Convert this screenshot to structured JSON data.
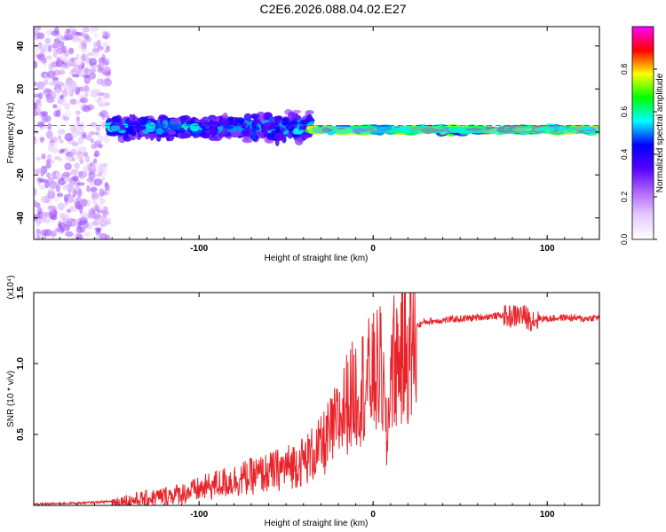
{
  "figure_title": "C2E6.2026.088.04.02.E27",
  "colors": {
    "snr_line": "#e8232a",
    "axis": "#000000",
    "dashed_level": "#555555"
  },
  "chart_data": [
    {
      "type": "heatmap",
      "xlabel": "Height of straight line (km)",
      "ylabel": "Frequency (Hz)",
      "xlim": [
        -195,
        130
      ],
      "ylim": [
        -50,
        49
      ],
      "x_ticks": [
        -100,
        0,
        100
      ],
      "x_tick_labels": [
        "-100",
        "0",
        "100"
      ],
      "y_ticks": [
        -40,
        -20,
        0,
        20,
        40
      ],
      "y_tick_labels": [
        "-40",
        "-20",
        "0",
        "20",
        "40"
      ],
      "dashed_level_hz": 3,
      "colorbar": {
        "label": "Normalized spectral amplitude",
        "range": [
          0,
          1
        ],
        "ticks": [
          0.0,
          0.2,
          0.4,
          0.6,
          0.8
        ],
        "tick_labels": [
          "0.0",
          "0.2",
          "0.4",
          "0.6",
          "0.8"
        ],
        "colormap": [
          "#ffffff",
          "#e6ccff",
          "#b266ff",
          "#5500ff",
          "#0000ff",
          "#00ffff",
          "#00ff00",
          "#ffff00",
          "#ff0000",
          "#ff00ff"
        ]
      },
      "regions": [
        {
          "name": "noise",
          "x_range": [
            -195,
            -152
          ],
          "freq_range": [
            -50,
            49
          ],
          "amplitude": 0.15
        },
        {
          "name": "broadband",
          "x_range": [
            -152,
            -35
          ],
          "freq_center": 2,
          "freq_halfwidth": 8,
          "amplitude": 0.4
        },
        {
          "name": "narrowband",
          "x_range": [
            -35,
            130
          ],
          "freq_center": 1,
          "freq_halfwidth": 2,
          "amplitude": 0.7
        },
        {
          "name": "peak",
          "x_range": [
            75,
            102
          ],
          "freq_center": 1,
          "freq_halfwidth": 1,
          "amplitude": 0.85
        }
      ]
    },
    {
      "type": "line",
      "xlabel": "Height of straight line (km)",
      "ylabel": "SNR (10 * v/v)",
      "scale_label": "(x10⁴)",
      "xlim": [
        -195,
        130
      ],
      "ylim": [
        0,
        1.5
      ],
      "x_ticks": [
        -100,
        0,
        100
      ],
      "x_tick_labels": [
        "-100",
        "0",
        "100"
      ],
      "y_ticks": [
        0.5,
        1.0,
        1.5
      ],
      "y_tick_labels": [
        "0.5",
        "1.0",
        "1.5"
      ],
      "series": [
        {
          "name": "SNR",
          "x": [
            -195,
            -180,
            -165,
            -150,
            -135,
            -120,
            -110,
            -100,
            -90,
            -80,
            -70,
            -60,
            -50,
            -40,
            -35,
            -30,
            -25,
            -20,
            -15,
            -10,
            -5,
            0,
            5,
            8,
            10,
            15,
            20,
            25,
            30,
            40,
            50,
            60,
            70,
            80,
            85,
            90,
            100,
            110,
            120,
            130
          ],
          "values": [
            0.01,
            0.015,
            0.02,
            0.03,
            0.05,
            0.08,
            0.1,
            0.13,
            0.17,
            0.2,
            0.23,
            0.26,
            0.3,
            0.35,
            0.4,
            0.45,
            0.55,
            0.65,
            0.8,
            0.88,
            0.95,
            1.0,
            1.05,
            0.45,
            1.1,
            1.15,
            1.2,
            1.27,
            1.3,
            1.31,
            1.32,
            1.33,
            1.34,
            1.35,
            1.36,
            1.33,
            1.32,
            1.33,
            1.32,
            1.33
          ]
        }
      ]
    }
  ]
}
